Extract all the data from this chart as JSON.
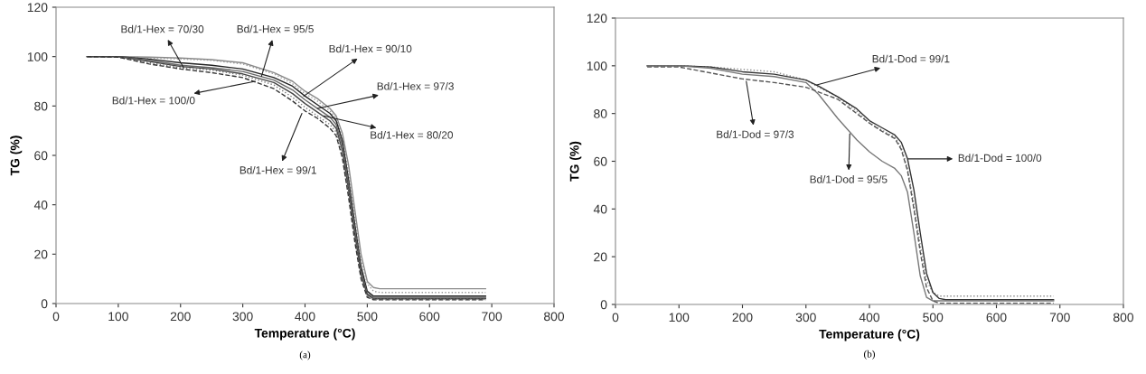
{
  "chart_data": [
    {
      "type": "line",
      "xlabel": "Temperature (°C)",
      "ylabel": "TG (%)",
      "xlim": [
        0,
        800
      ],
      "xticks": [
        0,
        100,
        200,
        300,
        400,
        500,
        600,
        700,
        800
      ],
      "ylim": [
        0,
        120
      ],
      "yticks": [
        0,
        20,
        40,
        60,
        80,
        100,
        120
      ],
      "grid": false,
      "x": [
        50,
        100,
        150,
        200,
        250,
        300,
        350,
        380,
        400,
        420,
        440,
        450,
        460,
        470,
        480,
        490,
        500,
        510,
        520,
        600,
        690
      ],
      "series": [
        {
          "color": "#8a8a8a",
          "line_style": "solid",
          "values": [
            100,
            100,
            99.8,
            99.4,
            98.8,
            97.5,
            93.5,
            90,
            86,
            83,
            79,
            76,
            69,
            56,
            38,
            20,
            9,
            6.5,
            6,
            6,
            6
          ]
        },
        {
          "color": "#9a9a9a",
          "line_style": "dotted",
          "values": [
            100,
            100,
            99.5,
            99,
            98.5,
            97,
            93,
            89,
            85,
            82,
            78,
            75,
            67,
            53,
            35,
            18,
            8,
            5,
            4.5,
            4.5,
            4.5
          ]
        },
        {
          "color": "#222222",
          "line_style": "solid",
          "values": [
            100,
            100,
            99,
            97.5,
            96.5,
            95,
            91.5,
            88,
            84,
            80.5,
            77,
            74,
            66,
            50,
            32,
            15,
            5,
            3,
            3,
            3,
            3
          ]
        },
        {
          "color": "#666666",
          "line_style": "solid",
          "values": [
            100,
            100,
            98.5,
            96.5,
            95.5,
            94,
            90.5,
            86.5,
            82.5,
            79,
            75.5,
            72.5,
            64,
            48,
            30,
            13,
            4,
            2.5,
            2.5,
            2.5,
            2.5
          ]
        },
        {
          "color": "#444444",
          "line_style": "solid",
          "values": [
            100,
            100,
            98,
            96,
            95,
            93,
            89.5,
            85,
            81,
            77.5,
            74,
            71,
            62,
            46,
            28,
            12,
            3.5,
            2,
            2,
            2,
            2
          ]
        },
        {
          "color": "#777777",
          "line_style": "dotted",
          "values": [
            100,
            99.8,
            97.5,
            95.5,
            94.5,
            92.5,
            88.5,
            83.5,
            79.5,
            76,
            72.5,
            69.5,
            61,
            45,
            27,
            11,
            3,
            1.8,
            1.8,
            1.8,
            1.8
          ]
        },
        {
          "color": "#333333",
          "line_style": "dashed",
          "values": [
            100,
            99.8,
            97,
            95,
            93.5,
            91.5,
            87,
            82,
            78,
            75,
            71,
            68,
            59,
            43,
            25,
            10,
            2.5,
            1.5,
            1.5,
            1.5,
            1.5
          ]
        }
      ],
      "annotations": [
        {
          "text": "Bd/1-Hex = 70/30",
          "x": 205,
          "y": 95.5
        },
        {
          "text": "Bd/1-Hex = 95/5",
          "x": 330,
          "y": 92
        },
        {
          "text": "Bd/1-Hex = 90/10",
          "x": 398,
          "y": 84
        },
        {
          "text": "Bd/1-Hex = 97/3",
          "x": 420,
          "y": 79
        },
        {
          "text": "Bd/1-Hex = 80/20",
          "x": 430,
          "y": 76
        },
        {
          "text": "Bd/1-Hex = 99/1",
          "x": 395,
          "y": 77
        },
        {
          "text": "Bd/1-Hex = 100/0",
          "x": 320,
          "y": 90
        },
        "(a)"
      ]
    },
    {
      "type": "line",
      "xlabel": "Temperature (°C)",
      "ylabel": "TG (%)",
      "xlim": [
        0,
        800
      ],
      "xticks": [
        0,
        100,
        200,
        300,
        400,
        500,
        600,
        700,
        800
      ],
      "ylim": [
        0,
        120
      ],
      "yticks": [
        0,
        20,
        40,
        60,
        80,
        100,
        120
      ],
      "grid": false,
      "x": [
        50,
        100,
        150,
        200,
        250,
        300,
        320,
        350,
        380,
        400,
        420,
        440,
        450,
        460,
        470,
        480,
        490,
        500,
        510,
        520,
        600,
        690
      ],
      "series": [
        {
          "color": "#8a8a8a",
          "line_style": "dotted",
          "values": [
            100,
            100,
            99.5,
            98.5,
            97.5,
            94,
            91,
            87,
            81,
            76,
            73,
            70,
            66,
            57,
            42,
            25,
            10,
            5,
            3.5,
            3.5,
            3.5,
            3.5
          ]
        },
        {
          "color": "#333333",
          "line_style": "solid",
          "values": [
            100,
            100,
            99.5,
            97.5,
            96.5,
            94,
            91.5,
            87,
            82,
            77,
            74,
            71,
            68,
            61,
            48,
            30,
            13,
            5,
            2.5,
            2,
            2,
            2
          ]
        },
        {
          "color": "#777777",
          "line_style": "solid",
          "values": [
            100,
            100,
            99,
            96.5,
            95.5,
            93,
            88,
            78,
            69,
            64,
            60,
            57,
            54,
            47,
            30,
            12,
            3,
            1.5,
            1.5,
            1.5,
            1.5,
            1.5
          ]
        },
        {
          "color": "#555555",
          "line_style": "dashed",
          "values": [
            99.5,
            99.5,
            97,
            94.5,
            93,
            91,
            89,
            86,
            80,
            76,
            72.5,
            69.5,
            65,
            56,
            40,
            22,
            7,
            1.5,
            0.5,
            0.5,
            0.5,
            0.5
          ]
        }
      ],
      "annotations": [
        {
          "text": "Bd/1-Dod = 99/1",
          "x": 317,
          "y": 92
        },
        {
          "text": "Bd/1-Dod = 97/3",
          "x": 206,
          "y": 93.5
        },
        {
          "text": "Bd/1-Dod = 95/5",
          "x": 369,
          "y": 71.5
        },
        {
          "text": "Bd/1-Dod = 100/0",
          "x": 461,
          "y": 61
        },
        "(b)"
      ]
    }
  ]
}
